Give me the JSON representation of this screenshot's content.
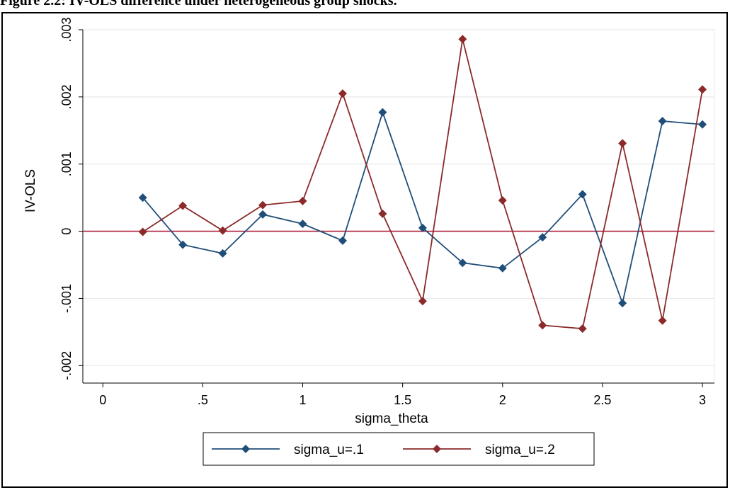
{
  "caption": "Figure 2.2: IV-OLS difference under heterogeneous group shocks.",
  "chart_data": {
    "type": "line",
    "title": "",
    "xlabel": "sigma_theta",
    "ylabel": "IV-OLS",
    "xlim": [
      0,
      3
    ],
    "ylim": [
      -0.002,
      0.003
    ],
    "xticks": [
      0,
      0.5,
      1,
      1.5,
      2,
      2.5,
      3
    ],
    "xtick_labels": [
      "0",
      ".5",
      "1",
      "1.5",
      "2",
      "2.5",
      "3"
    ],
    "yticks": [
      -0.002,
      -0.001,
      0,
      0.001,
      0.002,
      0.003
    ],
    "ytick_labels": [
      "-.002",
      "-.001",
      "0",
      ".001",
      ".002",
      ".003"
    ],
    "grid": true,
    "reference_line_y": 0,
    "legend_position": "bottom",
    "x": [
      0.2,
      0.4,
      0.6,
      0.8,
      1.0,
      1.2,
      1.4,
      1.6,
      1.8,
      2.0,
      2.2,
      2.4,
      2.6,
      2.8,
      3.0
    ],
    "series": [
      {
        "name": "sigma_u=.1",
        "color": "#1f4e79",
        "values": [
          0.0005,
          -0.0002,
          -0.00033,
          0.00025,
          0.00011,
          -0.00014,
          0.00177,
          5e-05,
          -0.00047,
          -0.00055,
          -9e-05,
          0.00055,
          -0.00107,
          0.00164,
          0.00159
        ]
      },
      {
        "name": "sigma_u=.2",
        "color": "#8b2a2a",
        "values": [
          -1e-05,
          0.00038,
          1e-05,
          0.00039,
          0.00045,
          0.00205,
          0.00026,
          -0.00104,
          0.00286,
          0.00046,
          -0.0014,
          -0.00145,
          0.00131,
          -0.00133,
          0.00211
        ]
      }
    ]
  }
}
